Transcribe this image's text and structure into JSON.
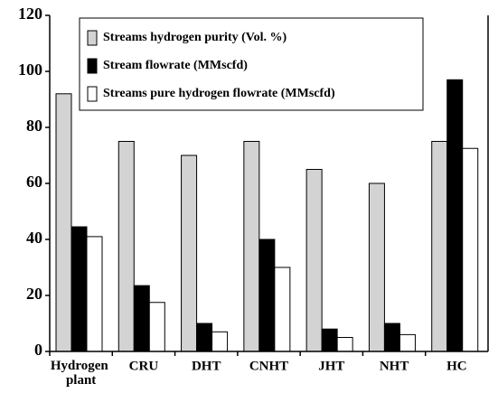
{
  "chart_data": {
    "type": "bar",
    "categories": [
      "Hydrogen plant",
      "CRU",
      "DHT",
      "CNHT",
      "JHT",
      "NHT",
      "HC"
    ],
    "series": [
      {
        "name": "Streams hydrogen purity (Vol. %)",
        "color": "#d3d3d3",
        "values": [
          92,
          75,
          70,
          75,
          65,
          60,
          75
        ]
      },
      {
        "name": "Stream flowrate (MMscfd)",
        "color": "#000000",
        "values": [
          44.5,
          23.5,
          10,
          40,
          8,
          10,
          97
        ]
      },
      {
        "name": "Streams pure hydrogen flowrate (MMscfd)",
        "color": "#ffffff",
        "values": [
          41,
          17.5,
          7,
          30,
          5,
          6,
          72.5
        ]
      }
    ],
    "ylim": [
      0,
      120
    ],
    "yticks": [
      0,
      20,
      40,
      60,
      80,
      100,
      120
    ],
    "grid": false,
    "legend": "top"
  }
}
